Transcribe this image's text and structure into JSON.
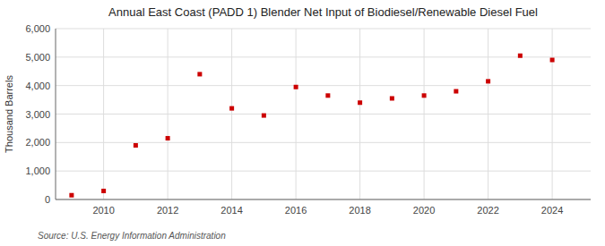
{
  "chart_data": {
    "type": "scatter",
    "title": "Annual East Coast (PADD 1) Blender Net Input of Biodiesel/Renewable Diesel Fuel",
    "ylabel": "Thousand Barrels",
    "source": "Source: U.S. Energy Information Administration",
    "x": [
      2009,
      2010,
      2011,
      2012,
      2013,
      2014,
      2015,
      2016,
      2017,
      2018,
      2019,
      2020,
      2021,
      2022,
      2023,
      2024
    ],
    "values": [
      150,
      300,
      1900,
      2150,
      4400,
      3200,
      2950,
      3950,
      3650,
      3400,
      3550,
      3650,
      3800,
      4150,
      5050,
      4900
    ],
    "color": "#cc0000",
    "marker": "square",
    "xlim": [
      2008.5,
      2025.2
    ],
    "ylim": [
      0,
      6000
    ],
    "xticks": [
      2010,
      2012,
      2014,
      2016,
      2018,
      2020,
      2022,
      2024
    ],
    "yticks": [
      0,
      {
        "value": 1000,
        "label": "1,000"
      },
      {
        "value": 2000,
        "label": "2,000"
      },
      {
        "value": 3000,
        "label": "3,000"
      },
      {
        "value": 4000,
        "label": "4,000"
      },
      {
        "value": 5000,
        "label": "5,000"
      },
      {
        "value": 6000,
        "label": "6,000"
      }
    ],
    "grid": true
  }
}
